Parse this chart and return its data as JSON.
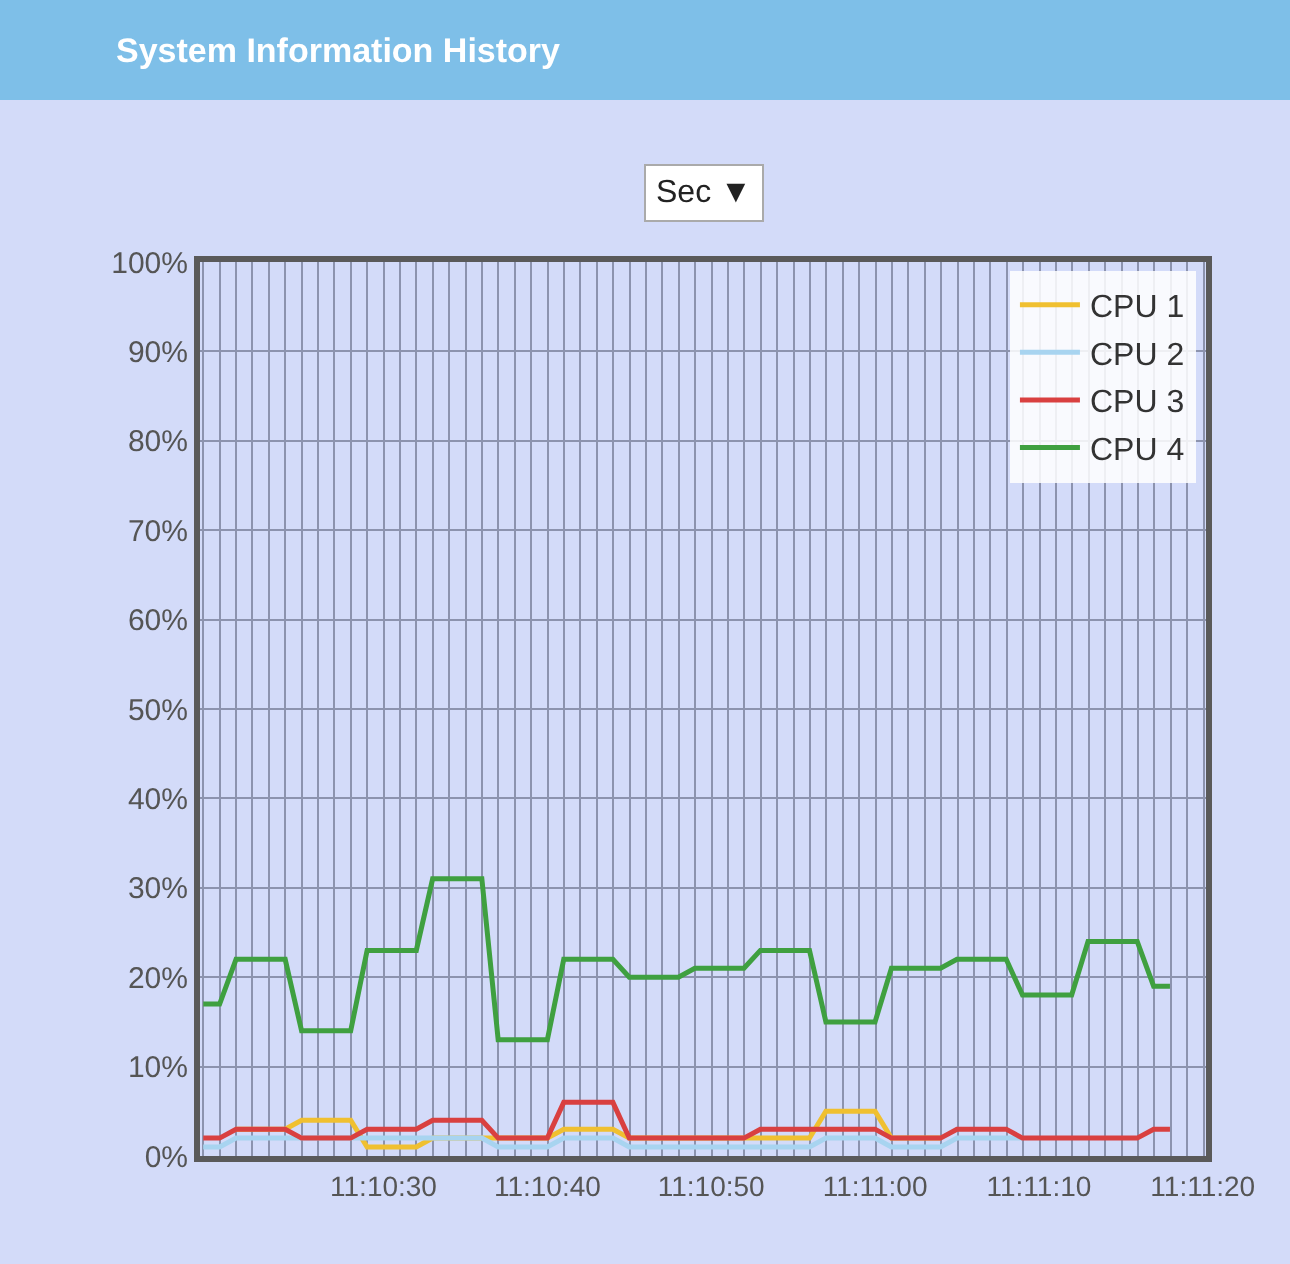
{
  "chart_data": {
    "type": "line",
    "title": "System Information History",
    "annotations": [
      "Sec ▼"
    ],
    "x": [
      11.171944,
      11.172222,
      11.1725,
      11.173333,
      11.173611,
      11.174444,
      11.174722,
      11.175556,
      11.175833,
      11.176667,
      11.176944,
      11.177778,
      11.178056,
      11.178889,
      11.179167,
      11.18,
      11.180278,
      11.181111,
      11.181389,
      11.182222,
      11.1825,
      11.183333,
      11.183611,
      11.184444,
      11.184722,
      11.185556,
      11.185833,
      11.186667,
      11.186944,
      11.187778,
      11.188056,
      11.188333
    ],
    "series": [
      {
        "name": "CPU 1",
        "color": "#f0c030",
        "values": [
          null,
          null,
          3,
          3,
          4,
          4,
          1,
          1,
          2,
          2,
          2,
          2,
          3,
          3,
          2,
          2,
          2,
          2,
          2,
          2,
          5,
          5,
          2,
          2,
          null,
          null,
          null,
          null,
          null,
          null,
          null,
          null
        ]
      },
      {
        "name": "CPU 2",
        "color": "#a8d4f0",
        "values": [
          1,
          1,
          2,
          2,
          2,
          2,
          2,
          2,
          2,
          2,
          1,
          1,
          2,
          2,
          1,
          1,
          1,
          1,
          1,
          1,
          2,
          2,
          1,
          1,
          2,
          2,
          2,
          null,
          null,
          null,
          null,
          null
        ]
      },
      {
        "name": "CPU 3",
        "color": "#d94040",
        "values": [
          2,
          2,
          3,
          3,
          2,
          2,
          3,
          3,
          4,
          4,
          2,
          2,
          6,
          6,
          2,
          2,
          2,
          2,
          3,
          3,
          3,
          3,
          2,
          2,
          3,
          3,
          2,
          2,
          2,
          2,
          3,
          3
        ]
      },
      {
        "name": "CPU 4",
        "color": "#3fa040",
        "values": [
          17,
          17,
          22,
          22,
          14,
          14,
          23,
          23,
          31,
          31,
          13,
          13,
          22,
          22,
          20,
          20,
          21,
          21,
          23,
          23,
          15,
          15,
          21,
          21,
          22,
          22,
          18,
          18,
          24,
          24,
          19,
          19
        ]
      }
    ],
    "xlim": [
      11.171889,
      11.188944
    ],
    "xticks": [
      {
        "value": 11.175,
        "label": "11:10:30"
      },
      {
        "value": 11.177778,
        "label": "11:10:40"
      },
      {
        "value": 11.180556,
        "label": "11:10:50"
      },
      {
        "value": 11.183333,
        "label": "11:11:00"
      },
      {
        "value": 11.186111,
        "label": "11:11:10"
      },
      {
        "value": 11.188889,
        "label": "11:11:20"
      }
    ],
    "ylim": [
      0,
      100
    ],
    "yticks": [
      {
        "value": 0,
        "label": "0%"
      },
      {
        "value": 10,
        "label": "10%"
      },
      {
        "value": 20,
        "label": "20%"
      },
      {
        "value": 30,
        "label": "30%"
      },
      {
        "value": 40,
        "label": "40%"
      },
      {
        "value": 50,
        "label": "50%"
      },
      {
        "value": 60,
        "label": "60%"
      },
      {
        "value": 70,
        "label": "70%"
      },
      {
        "value": 80,
        "label": "80%"
      },
      {
        "value": 90,
        "label": "90%"
      },
      {
        "value": 100,
        "label": "100%"
      }
    ],
    "grid": true,
    "legend": "top right",
    "marker": "none",
    "line_style": "solid"
  }
}
